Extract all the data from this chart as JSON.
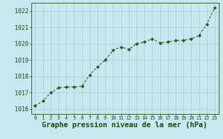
{
  "x": [
    0,
    1,
    2,
    3,
    4,
    5,
    6,
    7,
    8,
    9,
    10,
    11,
    12,
    13,
    14,
    15,
    16,
    17,
    18,
    19,
    20,
    21,
    22,
    23
  ],
  "y": [
    1016.2,
    1016.5,
    1017.0,
    1017.3,
    1017.35,
    1017.35,
    1017.4,
    1018.1,
    1018.6,
    1019.0,
    1019.6,
    1019.8,
    1019.65,
    1020.0,
    1020.1,
    1020.3,
    1020.05,
    1020.1,
    1020.2,
    1020.2,
    1020.3,
    1020.5,
    1021.2,
    1022.2
  ],
  "line_color": "#2d5a1b",
  "marker_color": "#2d5a1b",
  "bg_color": "#c8e8f0",
  "grid_color": "#aaccd6",
  "title": "Graphe pression niveau de la mer (hPa)",
  "xlabel_ticks": [
    0,
    1,
    2,
    3,
    4,
    5,
    6,
    7,
    8,
    9,
    10,
    11,
    12,
    13,
    14,
    15,
    16,
    17,
    18,
    19,
    20,
    21,
    22,
    23
  ],
  "yticks": [
    1016,
    1017,
    1018,
    1019,
    1020,
    1021,
    1022
  ],
  "ylim": [
    1015.7,
    1022.5
  ],
  "xlim": [
    -0.5,
    23.5
  ],
  "xtick_fontsize": 5.0,
  "ytick_fontsize": 6.0,
  "title_fontsize": 7.5,
  "axis_color": "#1a4a0a"
}
